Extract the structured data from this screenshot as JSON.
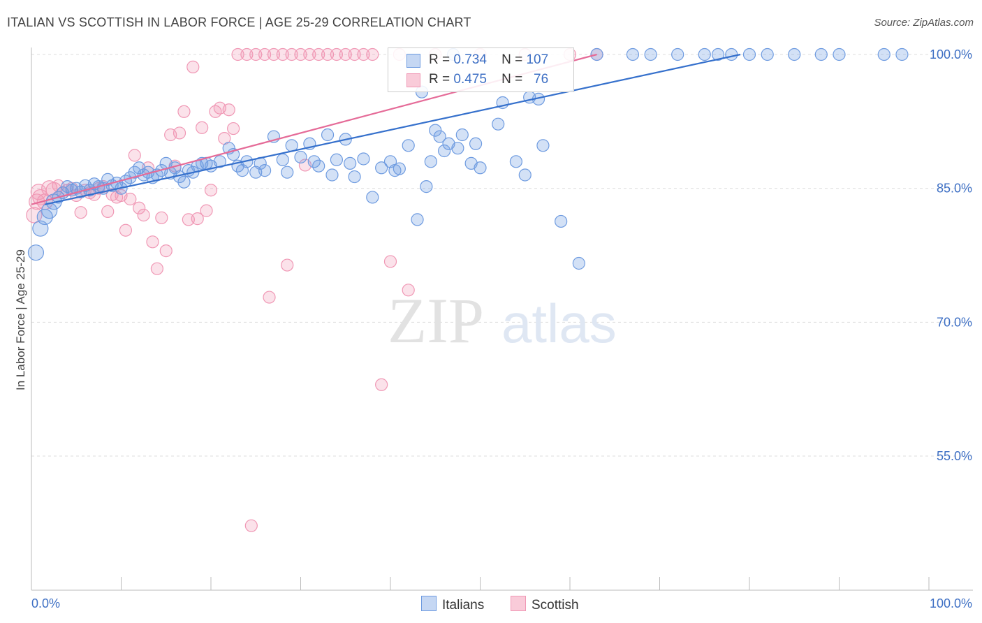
{
  "title": "ITALIAN VS SCOTTISH IN LABOR FORCE | AGE 25-29 CORRELATION CHART",
  "source": "Source: ZipAtlas.com",
  "watermark": {
    "zip": "ZIP",
    "atlas": "atlas"
  },
  "colors": {
    "blue": "#6e9be0",
    "pink": "#f098b5",
    "blue_line": "#3570cc",
    "pink_line": "#e56b98",
    "tick_label": "#3d6fc4"
  },
  "legend": {
    "r_label": "R =",
    "n_label": "N =",
    "italians": {
      "r": "0.734",
      "n": "107"
    },
    "scottish": {
      "r": "0.475",
      "n": "76"
    }
  },
  "bottom_legend": {
    "italians": "Italians",
    "scottish": "Scottish"
  },
  "chart_data": {
    "type": "scatter",
    "title": "ITALIAN VS SCOTTISH IN LABOR FORCE | AGE 25-29 CORRELATION CHART",
    "xlabel": "",
    "ylabel": "In Labor Force | Age 25-29",
    "xlim": [
      0,
      100
    ],
    "ylim": [
      40,
      102
    ],
    "x_tick_labels": [
      "0.0%",
      "100.0%"
    ],
    "y_ticks": [
      55,
      70,
      85,
      100
    ],
    "y_tick_labels": [
      "55.0%",
      "70.0%",
      "85.0%",
      "100.0%"
    ],
    "grid": true,
    "series": [
      {
        "name": "Italians",
        "r": 0.734,
        "n": 107,
        "trend": [
          [
            1.5,
            83.2
          ],
          [
            79,
            100.0
          ]
        ],
        "points": [
          [
            0.5,
            77.8
          ],
          [
            1,
            80.5
          ],
          [
            1.5,
            81.8
          ],
          [
            2,
            82.5
          ],
          [
            2.5,
            83.5
          ],
          [
            3,
            84.0
          ],
          [
            3.5,
            84.5
          ],
          [
            4,
            85.2
          ],
          [
            4.5,
            84.8
          ],
          [
            5,
            85.0
          ],
          [
            5.5,
            84.6
          ],
          [
            6,
            85.3
          ],
          [
            6.5,
            84.8
          ],
          [
            7,
            85.5
          ],
          [
            7.5,
            85.2
          ],
          [
            8,
            85.0
          ],
          [
            8.5,
            86.0
          ],
          [
            9,
            85.3
          ],
          [
            9.5,
            85.6
          ],
          [
            10,
            85.0
          ],
          [
            10.5,
            85.8
          ],
          [
            11,
            86.2
          ],
          [
            11.5,
            86.8
          ],
          [
            12,
            87.3
          ],
          [
            12.5,
            86.5
          ],
          [
            13,
            86.8
          ],
          [
            13.5,
            86.2
          ],
          [
            14,
            86.5
          ],
          [
            14.5,
            87.0
          ],
          [
            15,
            87.8
          ],
          [
            15.5,
            86.7
          ],
          [
            16,
            87.3
          ],
          [
            16.5,
            86.3
          ],
          [
            17,
            85.7
          ],
          [
            17.5,
            87.0
          ],
          [
            18,
            86.8
          ],
          [
            18.5,
            87.5
          ],
          [
            19,
            87.8
          ],
          [
            19.5,
            87.8
          ],
          [
            20,
            87.5
          ],
          [
            21,
            88.0
          ],
          [
            22,
            89.5
          ],
          [
            22.5,
            88.8
          ],
          [
            23,
            87.5
          ],
          [
            23.5,
            87.0
          ],
          [
            24,
            88.0
          ],
          [
            25,
            86.8
          ],
          [
            25.5,
            87.8
          ],
          [
            26,
            87.0
          ],
          [
            27,
            90.8
          ],
          [
            28,
            88.2
          ],
          [
            28.5,
            86.8
          ],
          [
            29,
            89.8
          ],
          [
            30,
            88.5
          ],
          [
            31,
            90.0
          ],
          [
            31.5,
            88.0
          ],
          [
            32,
            87.5
          ],
          [
            33,
            91.0
          ],
          [
            33.5,
            86.5
          ],
          [
            34,
            88.2
          ],
          [
            35,
            90.5
          ],
          [
            35.5,
            87.8
          ],
          [
            36,
            86.3
          ],
          [
            37,
            88.3
          ],
          [
            38,
            84.0
          ],
          [
            39,
            87.3
          ],
          [
            40,
            88.0
          ],
          [
            40.5,
            87.0
          ],
          [
            41,
            87.2
          ],
          [
            42,
            89.8
          ],
          [
            43,
            81.5
          ],
          [
            43.5,
            95.8
          ],
          [
            44,
            85.2
          ],
          [
            44.5,
            88.0
          ],
          [
            45,
            91.5
          ],
          [
            45.5,
            90.8
          ],
          [
            46,
            89.2
          ],
          [
            46.5,
            90.0
          ],
          [
            47,
            100
          ],
          [
            47.5,
            89.5
          ],
          [
            48,
            91.0
          ],
          [
            49,
            87.8
          ],
          [
            49.5,
            90.0
          ],
          [
            50,
            87.3
          ],
          [
            52,
            92.2
          ],
          [
            52.5,
            94.6
          ],
          [
            54,
            88.0
          ],
          [
            55,
            86.5
          ],
          [
            55.5,
            95.2
          ],
          [
            56.5,
            95.0
          ],
          [
            57,
            89.8
          ],
          [
            59,
            81.3
          ],
          [
            61,
            76.6
          ],
          [
            63,
            100
          ],
          [
            67,
            100
          ],
          [
            69,
            100
          ],
          [
            72,
            100
          ],
          [
            75,
            100
          ],
          [
            76.5,
            100
          ],
          [
            78,
            100
          ],
          [
            80,
            100
          ],
          [
            82,
            100
          ],
          [
            85,
            100
          ],
          [
            88,
            100
          ],
          [
            90,
            100
          ],
          [
            95,
            100
          ],
          [
            97,
            100
          ]
        ]
      },
      {
        "name": "Scottish",
        "r": 0.475,
        "n": 76,
        "trend": [
          [
            0,
            83.2
          ],
          [
            63,
            100.0
          ]
        ],
        "points": [
          [
            0.3,
            82.0
          ],
          [
            0.6,
            83.5
          ],
          [
            1,
            84.0
          ],
          [
            1.5,
            83.5
          ],
          [
            2,
            85.0
          ],
          [
            2.5,
            84.8
          ],
          [
            3,
            85.3
          ],
          [
            3.5,
            84.5
          ],
          [
            4,
            84.8
          ],
          [
            4.5,
            85.0
          ],
          [
            5,
            84.2
          ],
          [
            5.5,
            82.3
          ],
          [
            6,
            84.8
          ],
          [
            6.5,
            84.5
          ],
          [
            7,
            84.3
          ],
          [
            7.5,
            85.0
          ],
          [
            8,
            85.2
          ],
          [
            8.5,
            82.4
          ],
          [
            9,
            84.3
          ],
          [
            9.5,
            84.0
          ],
          [
            10,
            84.2
          ],
          [
            10.5,
            80.3
          ],
          [
            11,
            83.8
          ],
          [
            11.5,
            88.7
          ],
          [
            12,
            82.8
          ],
          [
            12.5,
            82.0
          ],
          [
            13,
            87.3
          ],
          [
            13.5,
            79.0
          ],
          [
            14,
            76.0
          ],
          [
            14.5,
            81.7
          ],
          [
            15,
            78.0
          ],
          [
            15.5,
            91.0
          ],
          [
            16,
            87.5
          ],
          [
            16.5,
            91.2
          ],
          [
            17,
            93.6
          ],
          [
            17.5,
            81.5
          ],
          [
            18,
            98.6
          ],
          [
            18.5,
            81.6
          ],
          [
            19,
            91.8
          ],
          [
            19.5,
            82.5
          ],
          [
            20,
            84.8
          ],
          [
            20.5,
            93.6
          ],
          [
            21,
            94.0
          ],
          [
            21.5,
            90.6
          ],
          [
            22,
            93.8
          ],
          [
            22.5,
            91.7
          ],
          [
            23,
            100
          ],
          [
            24,
            100
          ],
          [
            24.5,
            47.2
          ],
          [
            25,
            100
          ],
          [
            26,
            100
          ],
          [
            26.5,
            72.8
          ],
          [
            27,
            100
          ],
          [
            28,
            100
          ],
          [
            28.5,
            76.4
          ],
          [
            29,
            100
          ],
          [
            30,
            100
          ],
          [
            30.5,
            87.6
          ],
          [
            31,
            100
          ],
          [
            32,
            100
          ],
          [
            33,
            100
          ],
          [
            34,
            100
          ],
          [
            35,
            100
          ],
          [
            36,
            100
          ],
          [
            37,
            100
          ],
          [
            38,
            100
          ],
          [
            39,
            63.0
          ],
          [
            40,
            76.8
          ],
          [
            41,
            100
          ],
          [
            42,
            73.6
          ],
          [
            45,
            100
          ],
          [
            50,
            100
          ],
          [
            55,
            100
          ],
          [
            60,
            100
          ],
          [
            63,
            100
          ],
          [
            0.8,
            84.6
          ]
        ]
      }
    ]
  }
}
